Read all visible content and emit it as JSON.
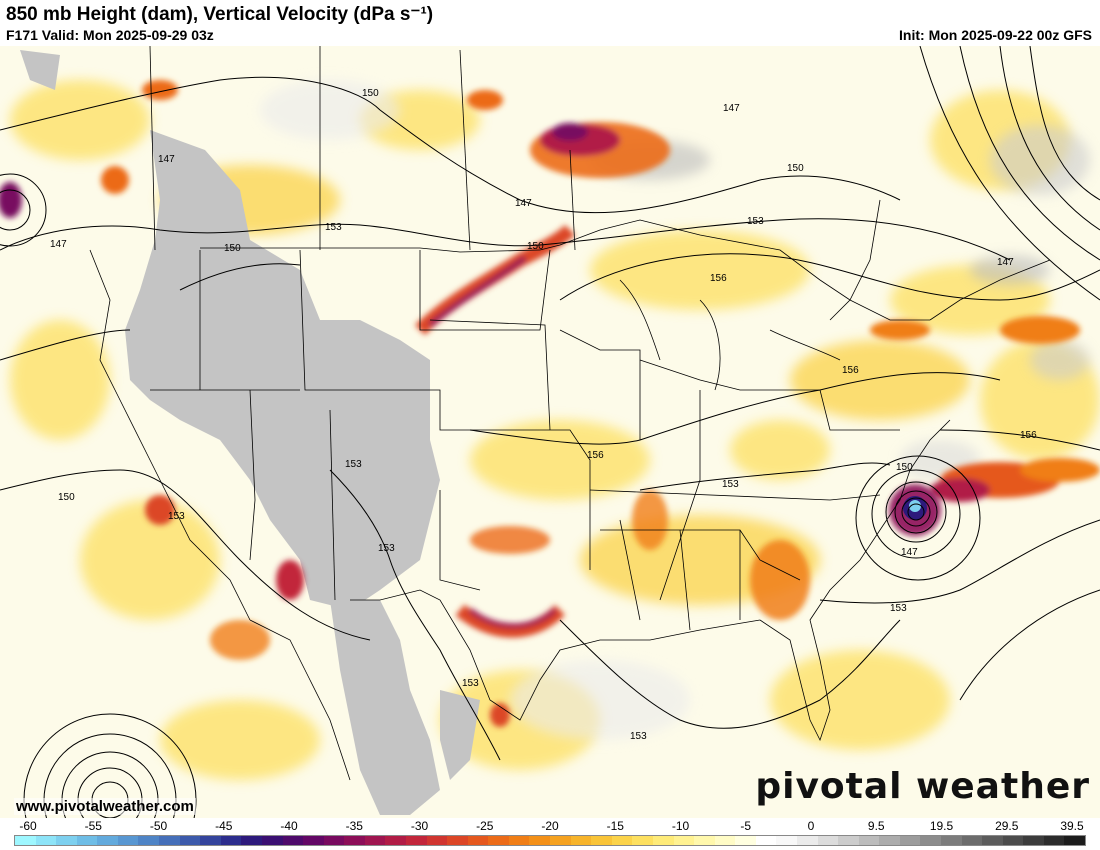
{
  "header": {
    "title": "850 mb Height (dam), Vertical Velocity (dPa s⁻¹)",
    "valid": "F171 Valid: Mon 2025-09-29 03z",
    "init": "Init: Mon 2025-09-22 00z GFS"
  },
  "map": {
    "contour_labels": [
      "150",
      "147",
      "147",
      "150",
      "153",
      "147",
      "150",
      "147",
      "150",
      "153",
      "156",
      "147",
      "150",
      "153",
      "153",
      "153",
      "153",
      "156",
      "156",
      "153",
      "156",
      "153",
      "150",
      "147",
      "153",
      "153",
      "153"
    ],
    "high_terrain_color": "#c4c4c4",
    "land_outline_color": "#000000",
    "contour_color": "#000000"
  },
  "footer": {
    "url": "www.pivotalweather.com",
    "brand": "pivotal weather"
  },
  "colorbar": {
    "ticks": [
      "-60",
      "-55",
      "-50",
      "-45",
      "-40",
      "-35",
      "-30",
      "-25",
      "-20",
      "-15",
      "-10",
      "-5",
      "0",
      "9.5",
      "19.5",
      "29.5",
      "39.5"
    ],
    "colors": [
      "#9ef7ff",
      "#8de4f8",
      "#7dd0ef",
      "#6ebde6",
      "#62aadd",
      "#5897d2",
      "#4e84c6",
      "#456fb9",
      "#3c5aab",
      "#34449c",
      "#2c2d8d",
      "#2d1a7c",
      "#3a0f72",
      "#4e0a6b",
      "#630766",
      "#780a60",
      "#8c0e58",
      "#9f1550",
      "#b11c46",
      "#c2263b",
      "#d03530",
      "#dc4626",
      "#e5581e",
      "#ec6b18",
      "#f07e16",
      "#f39018",
      "#f5a220",
      "#f7b42b",
      "#f9c438",
      "#fbd34a",
      "#fde060",
      "#feeb79",
      "#fff292",
      "#fff8ac",
      "#fffcc6",
      "#ffffe0",
      "#ffffff",
      "#f8f8f8",
      "#ebebeb",
      "#dcdcdc",
      "#cccccc",
      "#bcbcbc",
      "#acacac",
      "#9c9c9c",
      "#8c8c8c",
      "#7c7c7c",
      "#6c6c6c",
      "#5c5c5c",
      "#4c4c4c",
      "#3c3c3c",
      "#2c2c2c",
      "#1c1c1c"
    ]
  }
}
